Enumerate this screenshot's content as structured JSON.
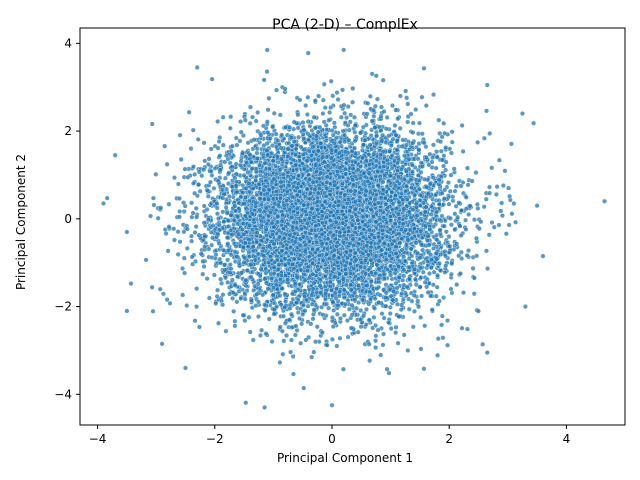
{
  "chart_data": {
    "type": "scatter",
    "title": "PCA (2-D) – ComplEx",
    "xlabel": "Principal Component 1",
    "ylabel": "Principal Component 2",
    "xlim": [
      -4.3,
      5.0
    ],
    "ylim": [
      -4.7,
      4.35
    ],
    "xticks": [
      -4,
      -2,
      0,
      2,
      4
    ],
    "yticks": [
      -4,
      -2,
      0,
      2,
      4
    ],
    "xtick_labels": [
      "−4",
      "−2",
      "0",
      "2",
      "4"
    ],
    "ytick_labels": [
      "−4",
      "−2",
      "0",
      "2",
      "4"
    ],
    "grid": false,
    "point_color": "#1f77b4",
    "point_edge_color": "#ffffff",
    "distribution": {
      "description_center_x": 0,
      "description_center_y": 0,
      "std_x": 0.95,
      "std_y": 1.0,
      "n_points": 9000
    },
    "outliers": [
      {
        "x": -3.9,
        "y": 0.35
      },
      {
        "x": -3.7,
        "y": 1.45
      },
      {
        "x": -3.5,
        "y": -2.1
      },
      {
        "x": -3.5,
        "y": -0.3
      },
      {
        "x": -2.3,
        "y": 3.45
      },
      {
        "x": 0.2,
        "y": 3.85
      },
      {
        "x": 0.0,
        "y": -4.25
      },
      {
        "x": -1.15,
        "y": -4.3
      },
      {
        "x": 4.65,
        "y": 0.4
      },
      {
        "x": 3.6,
        "y": -0.85
      },
      {
        "x": 3.5,
        "y": 0.3
      },
      {
        "x": 3.3,
        "y": -2.0
      },
      {
        "x": 3.25,
        "y": 2.4
      },
      {
        "x": 2.65,
        "y": 3.05
      },
      {
        "x": 2.65,
        "y": -3.05
      },
      {
        "x": -2.5,
        "y": -3.4
      },
      {
        "x": -2.9,
        "y": -2.85
      }
    ]
  }
}
